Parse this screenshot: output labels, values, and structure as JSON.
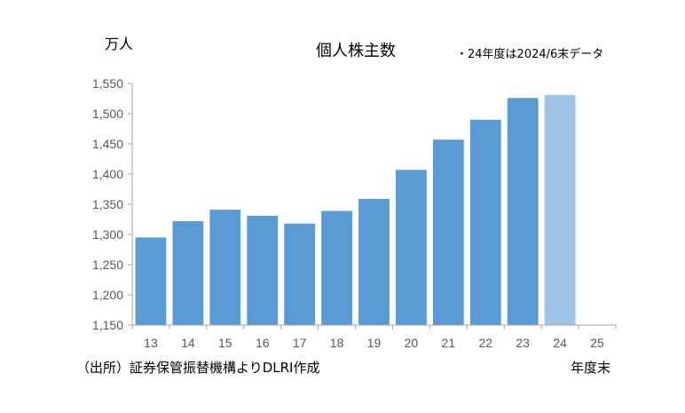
{
  "chart_data": {
    "type": "bar",
    "title": "個人株主数",
    "ylabel": "万人",
    "xlabel": "年度末",
    "note": "・24年度は2024/6末データ",
    "source": "（出所）証券保管振替機構よりDLRI作成",
    "categories": [
      "13",
      "14",
      "15",
      "16",
      "17",
      "18",
      "19",
      "20",
      "21",
      "22",
      "23",
      "24",
      "25"
    ],
    "values": [
      1295,
      1322,
      1341,
      1331,
      1318,
      1339,
      1359,
      1407,
      1457,
      1490,
      1526,
      1531,
      null
    ],
    "ylim": [
      1150,
      1550
    ],
    "yticks": [
      1150,
      1200,
      1250,
      1300,
      1350,
      1400,
      1450,
      1500,
      1550
    ],
    "ytick_labels": [
      "1,150",
      "1,200",
      "1,250",
      "1,300",
      "1,350",
      "1,400",
      "1,450",
      "1,500",
      "1,550"
    ],
    "highlight_category": "24",
    "colors": {
      "bar": "#5b9bd5",
      "highlight": "#9dc3e6",
      "axis": "#a6a6a6"
    },
    "grid": false,
    "legend": "none"
  }
}
